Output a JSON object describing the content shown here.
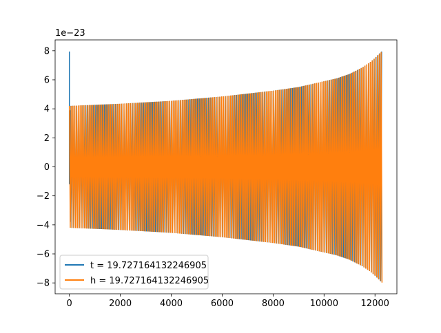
{
  "chart_data": {
    "type": "line",
    "title": "",
    "xlabel": "",
    "ylabel": "",
    "y_offset_text": "1e−23",
    "xlim": [
      -560,
      12860
    ],
    "ylim": [
      -8.75,
      8.75
    ],
    "x_ticks": [
      0,
      2000,
      4000,
      6000,
      8000,
      10000,
      12000
    ],
    "x_tick_labels": [
      "0",
      "2000",
      "4000",
      "6000",
      "8000",
      "10000",
      "12000"
    ],
    "y_ticks": [
      -8,
      -6,
      -4,
      -2,
      0,
      2,
      4,
      6,
      8
    ],
    "y_tick_labels": [
      "−8",
      "−6",
      "−4",
      "−2",
      "0",
      "2",
      "4",
      "6",
      "8"
    ],
    "grid": false,
    "legend_position": "lower-left",
    "series": [
      {
        "name": "t = 19.727164132246905",
        "color": "#1f77b4",
        "x": [
          0,
          0,
          0,
          20,
          40
        ],
        "y": [
          -1.2,
          7.95,
          -1.2,
          3.9,
          -3.8
        ]
      },
      {
        "name": "h = 19.727164132246905",
        "color": "#ff7f0e",
        "x_range": [
          0,
          12288
        ],
        "envelope": {
          "x": [
            0,
            2000,
            4000,
            6000,
            8000,
            9000,
            10000,
            10500,
            11000,
            11500,
            11800,
            12000,
            12200,
            12288
          ],
          "amplitude": [
            4.2,
            4.35,
            4.55,
            4.85,
            5.25,
            5.5,
            5.9,
            6.1,
            6.4,
            6.85,
            7.2,
            7.5,
            7.85,
            8.0
          ]
        }
      }
    ]
  }
}
